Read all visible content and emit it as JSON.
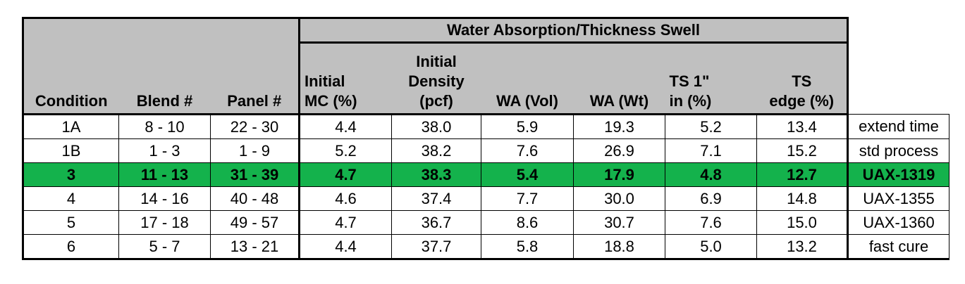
{
  "table": {
    "group_header": "Water Absorption/Thickness Swell",
    "columns": [
      {
        "lines": [
          "Condition"
        ]
      },
      {
        "lines": [
          "Blend #"
        ]
      },
      {
        "lines": [
          "Panel #"
        ]
      },
      {
        "lines": [
          "Initial",
          "MC    (%)"
        ]
      },
      {
        "lines": [
          "Initial",
          "Density",
          "(pcf)"
        ]
      },
      {
        "lines": [
          "WA (Vol)"
        ]
      },
      {
        "lines": [
          "WA (Wt)"
        ]
      },
      {
        "lines": [
          "TS      1\"",
          "in (%)"
        ]
      },
      {
        "lines": [
          "TS",
          "edge (%)"
        ]
      }
    ],
    "rows": [
      {
        "condition": "1A",
        "blend": "8 - 10",
        "panel": "22 - 30",
        "mc": "4.4",
        "density": "38.0",
        "wa_vol": "5.9",
        "wa_wt": "19.3",
        "ts_1in": "5.2",
        "ts_edge": "13.4",
        "note": "extend time"
      },
      {
        "condition": "1B",
        "blend": "1 - 3",
        "panel": "1 - 9",
        "mc": "5.2",
        "density": "38.2",
        "wa_vol": "7.6",
        "wa_wt": "26.9",
        "ts_1in": "7.1",
        "ts_edge": "15.2",
        "note": "std process"
      },
      {
        "condition": "3",
        "blend": "11 - 13",
        "panel": "31 - 39",
        "mc": "4.7",
        "density": "38.3",
        "wa_vol": "5.4",
        "wa_wt": "17.9",
        "ts_1in": "4.8",
        "ts_edge": "12.7",
        "note": "UAX-1319",
        "highlight": true
      },
      {
        "condition": "4",
        "blend": "14 - 16",
        "panel": "40 - 48",
        "mc": "4.6",
        "density": "37.4",
        "wa_vol": "7.7",
        "wa_wt": "30.0",
        "ts_1in": "6.9",
        "ts_edge": "14.8",
        "note": "UAX-1355"
      },
      {
        "condition": "5",
        "blend": "17 - 18",
        "panel": "49 - 57",
        "mc": "4.7",
        "density": "36.7",
        "wa_vol": "8.6",
        "wa_wt": "30.7",
        "ts_1in": "7.6",
        "ts_edge": "15.0",
        "note": "UAX-1360"
      },
      {
        "condition": "6",
        "blend": "5 - 7",
        "panel": "13 - 21",
        "mc": "4.4",
        "density": "37.7",
        "wa_vol": "5.8",
        "wa_wt": "18.8",
        "ts_1in": "5.0",
        "ts_edge": "13.2",
        "note": "fast cure"
      }
    ]
  },
  "colors": {
    "header_bg": "#c0c0c0",
    "highlight_bg": "#14b24c"
  }
}
